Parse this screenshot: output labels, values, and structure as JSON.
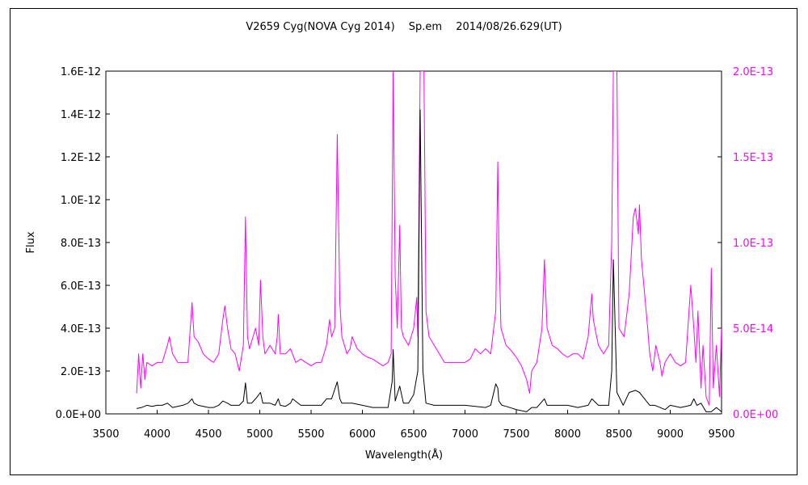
{
  "chart_data": {
    "type": "line",
    "title": "V2659 Cyg(NOVA Cyg 2014)　 Sp.em 　2014/08/26.629(UT)",
    "xlabel": "Wavelength(Å)",
    "ylabel": "Flux",
    "xlim": [
      3500,
      9500
    ],
    "ylim_left": [
      0,
      1.6e-12
    ],
    "ylim_right": [
      0,
      2e-13
    ],
    "x_ticks": [
      "3500",
      "4000",
      "4500",
      "5000",
      "5500",
      "6000",
      "6500",
      "7000",
      "7500",
      "8000",
      "8500",
      "9000",
      "9500"
    ],
    "y_left_ticks": [
      "0.0E+00",
      "2.0E-13",
      "4.0E-13",
      "6.0E-13",
      "8.0E-13",
      "1.0E-12",
      "1.2E-12",
      "1.4E-12",
      "1.6E-12"
    ],
    "y_right_ticks": [
      "0.0E+00",
      "5.0E-14",
      "1.0E-13",
      "1.5E-13",
      "2.0E-13"
    ],
    "grid": false,
    "colors": {
      "left_series": "#000000",
      "right_series": "#ff00ff"
    },
    "series": [
      {
        "axis": "left",
        "color": "#000000",
        "x": [
          3800,
          3850,
          3900,
          3950,
          4000,
          4050,
          4100,
          4150,
          4200,
          4250,
          4300,
          4340,
          4360,
          4400,
          4450,
          4500,
          4550,
          4600,
          4640,
          4686,
          4720,
          4800,
          4840,
          4861,
          4880,
          4920,
          4959,
          5007,
          5030,
          5100,
          5150,
          5180,
          5200,
          5250,
          5300,
          5320,
          5400,
          5500,
          5600,
          5650,
          5700,
          5755,
          5780,
          5800,
          5850,
          5900,
          6000,
          6100,
          6200,
          6250,
          6290,
          6300,
          6320,
          6364,
          6400,
          6450,
          6500,
          6540,
          6563,
          6590,
          6620,
          6700,
          6800,
          6900,
          7000,
          7100,
          7200,
          7250,
          7300,
          7320,
          7330,
          7360,
          7400,
          7500,
          7600,
          7650,
          7700,
          7774,
          7800,
          7900,
          8000,
          8100,
          8200,
          8236,
          8300,
          8400,
          8430,
          8446,
          8480,
          8542,
          8580,
          8600,
          8662,
          8700,
          8750,
          8800,
          8850,
          8900,
          8950,
          9000,
          9100,
          9200,
          9230,
          9260,
          9300,
          9350,
          9400,
          9450,
          9500
        ],
        "y": [
          2.5e-14,
          3e-14,
          4e-14,
          3.5e-14,
          4e-14,
          4e-14,
          5e-14,
          3e-14,
          3.5e-14,
          4e-14,
          5e-14,
          7e-14,
          5e-14,
          4e-14,
          3.5e-14,
          3e-14,
          3e-14,
          4e-14,
          6e-14,
          5e-14,
          4e-14,
          4e-14,
          6e-14,
          1.45e-13,
          5e-14,
          5e-14,
          7e-14,
          1e-13,
          5e-14,
          5e-14,
          4e-14,
          7e-14,
          4e-14,
          3.5e-14,
          5e-14,
          7e-14,
          4e-14,
          4e-14,
          4e-14,
          7e-14,
          7e-14,
          1.5e-13,
          7e-14,
          5e-14,
          5e-14,
          5e-14,
          4e-14,
          3e-14,
          3e-14,
          3e-14,
          1.5e-13,
          3e-13,
          6e-14,
          1.3e-13,
          5e-14,
          5e-14,
          9e-14,
          2e-13,
          1.42e-12,
          2e-13,
          5e-14,
          4e-14,
          4e-14,
          4e-14,
          4e-14,
          3.5e-14,
          3e-14,
          4e-14,
          1.4e-13,
          1.2e-13,
          6e-14,
          4e-14,
          3.5e-14,
          2e-14,
          1e-14,
          3e-14,
          3e-14,
          7e-14,
          4e-14,
          4e-14,
          4e-14,
          3e-14,
          4e-14,
          7e-14,
          4e-14,
          4e-14,
          2e-13,
          7.2e-13,
          1e-13,
          4e-14,
          8e-14,
          1e-13,
          1.1e-13,
          1e-13,
          7e-14,
          4e-14,
          4e-14,
          3e-14,
          2e-14,
          4e-14,
          3e-14,
          4e-14,
          7e-14,
          4e-14,
          5e-14,
          1e-14,
          1e-14,
          3e-14,
          1e-14
        ]
      },
      {
        "axis": "right",
        "color": "#ff00ff",
        "x": [
          3800,
          3820,
          3840,
          3860,
          3880,
          3900,
          3950,
          4000,
          4050,
          4100,
          4120,
          4150,
          4200,
          4250,
          4300,
          4340,
          4360,
          4400,
          4450,
          4500,
          4550,
          4600,
          4640,
          4660,
          4686,
          4720,
          4760,
          4800,
          4840,
          4861,
          4880,
          4900,
          4959,
          4990,
          5007,
          5030,
          5050,
          5100,
          5150,
          5170,
          5180,
          5200,
          5250,
          5300,
          5350,
          5400,
          5450,
          5500,
          5550,
          5600,
          5650,
          5680,
          5700,
          5730,
          5755,
          5780,
          5800,
          5850,
          5880,
          5900,
          5950,
          6000,
          6050,
          6100,
          6150,
          6200,
          6250,
          6280,
          6300,
          6320,
          6340,
          6364,
          6380,
          6400,
          6450,
          6500,
          6530,
          6540,
          6563,
          6600,
          6620,
          6650,
          6700,
          6750,
          6800,
          6900,
          7000,
          7050,
          7100,
          7150,
          7200,
          7250,
          7300,
          7320,
          7330,
          7350,
          7400,
          7450,
          7500,
          7550,
          7600,
          7630,
          7650,
          7700,
          7750,
          7774,
          7800,
          7850,
          7900,
          7950,
          8000,
          8050,
          8100,
          8150,
          8200,
          8236,
          8250,
          8300,
          8350,
          8400,
          8430,
          8446,
          8480,
          8500,
          8550,
          8600,
          8640,
          8660,
          8690,
          8700,
          8720,
          8750,
          8780,
          8800,
          8830,
          8860,
          8900,
          8920,
          8950,
          9000,
          9050,
          9100,
          9150,
          9200,
          9230,
          9250,
          9270,
          9300,
          9320,
          9350,
          9380,
          9400,
          9420,
          9450,
          9480,
          9500
        ],
        "y": [
          1.2e-14,
          3.5e-14,
          1.5e-14,
          3.5e-14,
          2e-14,
          3e-14,
          2.8e-14,
          3e-14,
          3e-14,
          4e-14,
          4.5e-14,
          3.5e-14,
          3e-14,
          3e-14,
          3e-14,
          6.5e-14,
          4.5e-14,
          4.2e-14,
          3.5e-14,
          3.2e-14,
          3e-14,
          3.5e-14,
          5.5e-14,
          6.3e-14,
          5e-14,
          3.8e-14,
          3.5e-14,
          2.5e-14,
          4e-14,
          1.15e-13,
          4.5e-14,
          3.8e-14,
          5e-14,
          4e-14,
          7.8e-14,
          4.5e-14,
          3.5e-14,
          4e-14,
          3.5e-14,
          4.5e-14,
          5.8e-14,
          3.5e-14,
          3.5e-14,
          3.8e-14,
          3e-14,
          3.2e-14,
          3e-14,
          2.8e-14,
          3e-14,
          3e-14,
          4e-14,
          5.5e-14,
          4.5e-14,
          5e-14,
          1.63e-13,
          6.5e-14,
          4.5e-14,
          3.5e-14,
          3.8e-14,
          4.5e-14,
          3.8e-14,
          3.5e-14,
          3.3e-14,
          3.2e-14,
          3e-14,
          2.8e-14,
          3e-14,
          3.5e-14,
          2e-13,
          8e-14,
          5e-14,
          1.1e-13,
          5e-14,
          4.5e-14,
          4e-14,
          5e-14,
          6.8e-14,
          4.5e-14,
          2e-13,
          2e-13,
          6e-14,
          4.5e-14,
          4e-14,
          3.5e-14,
          3e-14,
          3e-14,
          3e-14,
          3.2e-14,
          3.8e-14,
          3.5e-14,
          3.8e-14,
          3.5e-14,
          6e-14,
          1.47e-13,
          1e-13,
          5e-14,
          4e-14,
          3.7e-14,
          3.3e-14,
          2.8e-14,
          2e-14,
          1.2e-14,
          2.5e-14,
          3e-14,
          5e-14,
          9e-14,
          5e-14,
          4e-14,
          3.8e-14,
          3.5e-14,
          3.3e-14,
          3.5e-14,
          3.5e-14,
          3.2e-14,
          4.5e-14,
          7e-14,
          5.5e-14,
          4e-14,
          3.5e-14,
          4e-14,
          1e-13,
          2e-13,
          2e-13,
          5e-14,
          4.5e-14,
          7e-14,
          1.15e-13,
          1.2e-13,
          1.05e-13,
          1.22e-13,
          9e-14,
          7e-14,
          5e-14,
          3.5e-14,
          2.5e-14,
          4e-14,
          3e-14,
          2.2e-14,
          3e-14,
          3.5e-14,
          3e-14,
          2.8e-14,
          3e-14,
          7.5e-14,
          5e-14,
          3e-14,
          6e-14,
          1.5e-14,
          4e-14,
          1e-14,
          5e-15,
          8.5e-14,
          1.5e-14,
          4e-14,
          1e-14,
          5e-14
        ]
      }
    ]
  }
}
